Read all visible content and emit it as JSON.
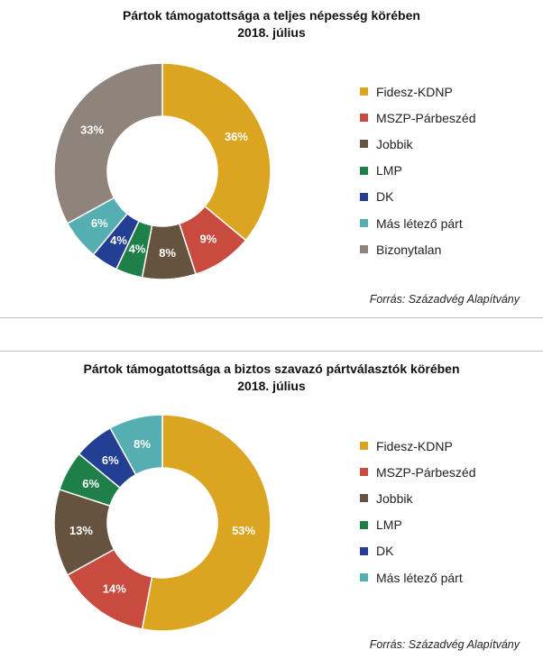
{
  "colors": {
    "Fidesz-KDNP": "#dba521",
    "MSZP-Párbeszéd": "#c94b3f",
    "Jobbik": "#65533f",
    "LMP": "#1f7f48",
    "DK": "#233f93",
    "Más létező párt": "#55aeb2",
    "Bizonytalan": "#8f847c"
  },
  "chart_data": [
    {
      "type": "pie",
      "donut": true,
      "title": "Pártok támogatottsága a teljes népesség körében",
      "subtitle": "2018. július",
      "categories": [
        "Fidesz-KDNP",
        "MSZP-Párbeszéd",
        "Jobbik",
        "LMP",
        "DK",
        "Más létező párt",
        "Bizonytalan"
      ],
      "values": [
        36,
        9,
        8,
        4,
        4,
        6,
        33
      ],
      "value_labels": [
        "36%",
        "9%",
        "8%",
        "4%",
        "4%",
        "6%",
        "33%"
      ],
      "legend_position": "right",
      "source": "Forrás: Századvég Alapítvány"
    },
    {
      "type": "pie",
      "donut": true,
      "title": "Pártok támogatottsága a biztos szavazó pártválasztók körében",
      "subtitle": "2018. július",
      "categories": [
        "Fidesz-KDNP",
        "MSZP-Párbeszéd",
        "Jobbik",
        "LMP",
        "DK",
        "Más létező párt"
      ],
      "values": [
        53,
        14,
        13,
        6,
        6,
        8
      ],
      "value_labels": [
        "53%",
        "14%",
        "13%",
        "6%",
        "6%",
        "8%"
      ],
      "legend_position": "right",
      "source": "Forrás: Századvég Alapítvány"
    }
  ]
}
